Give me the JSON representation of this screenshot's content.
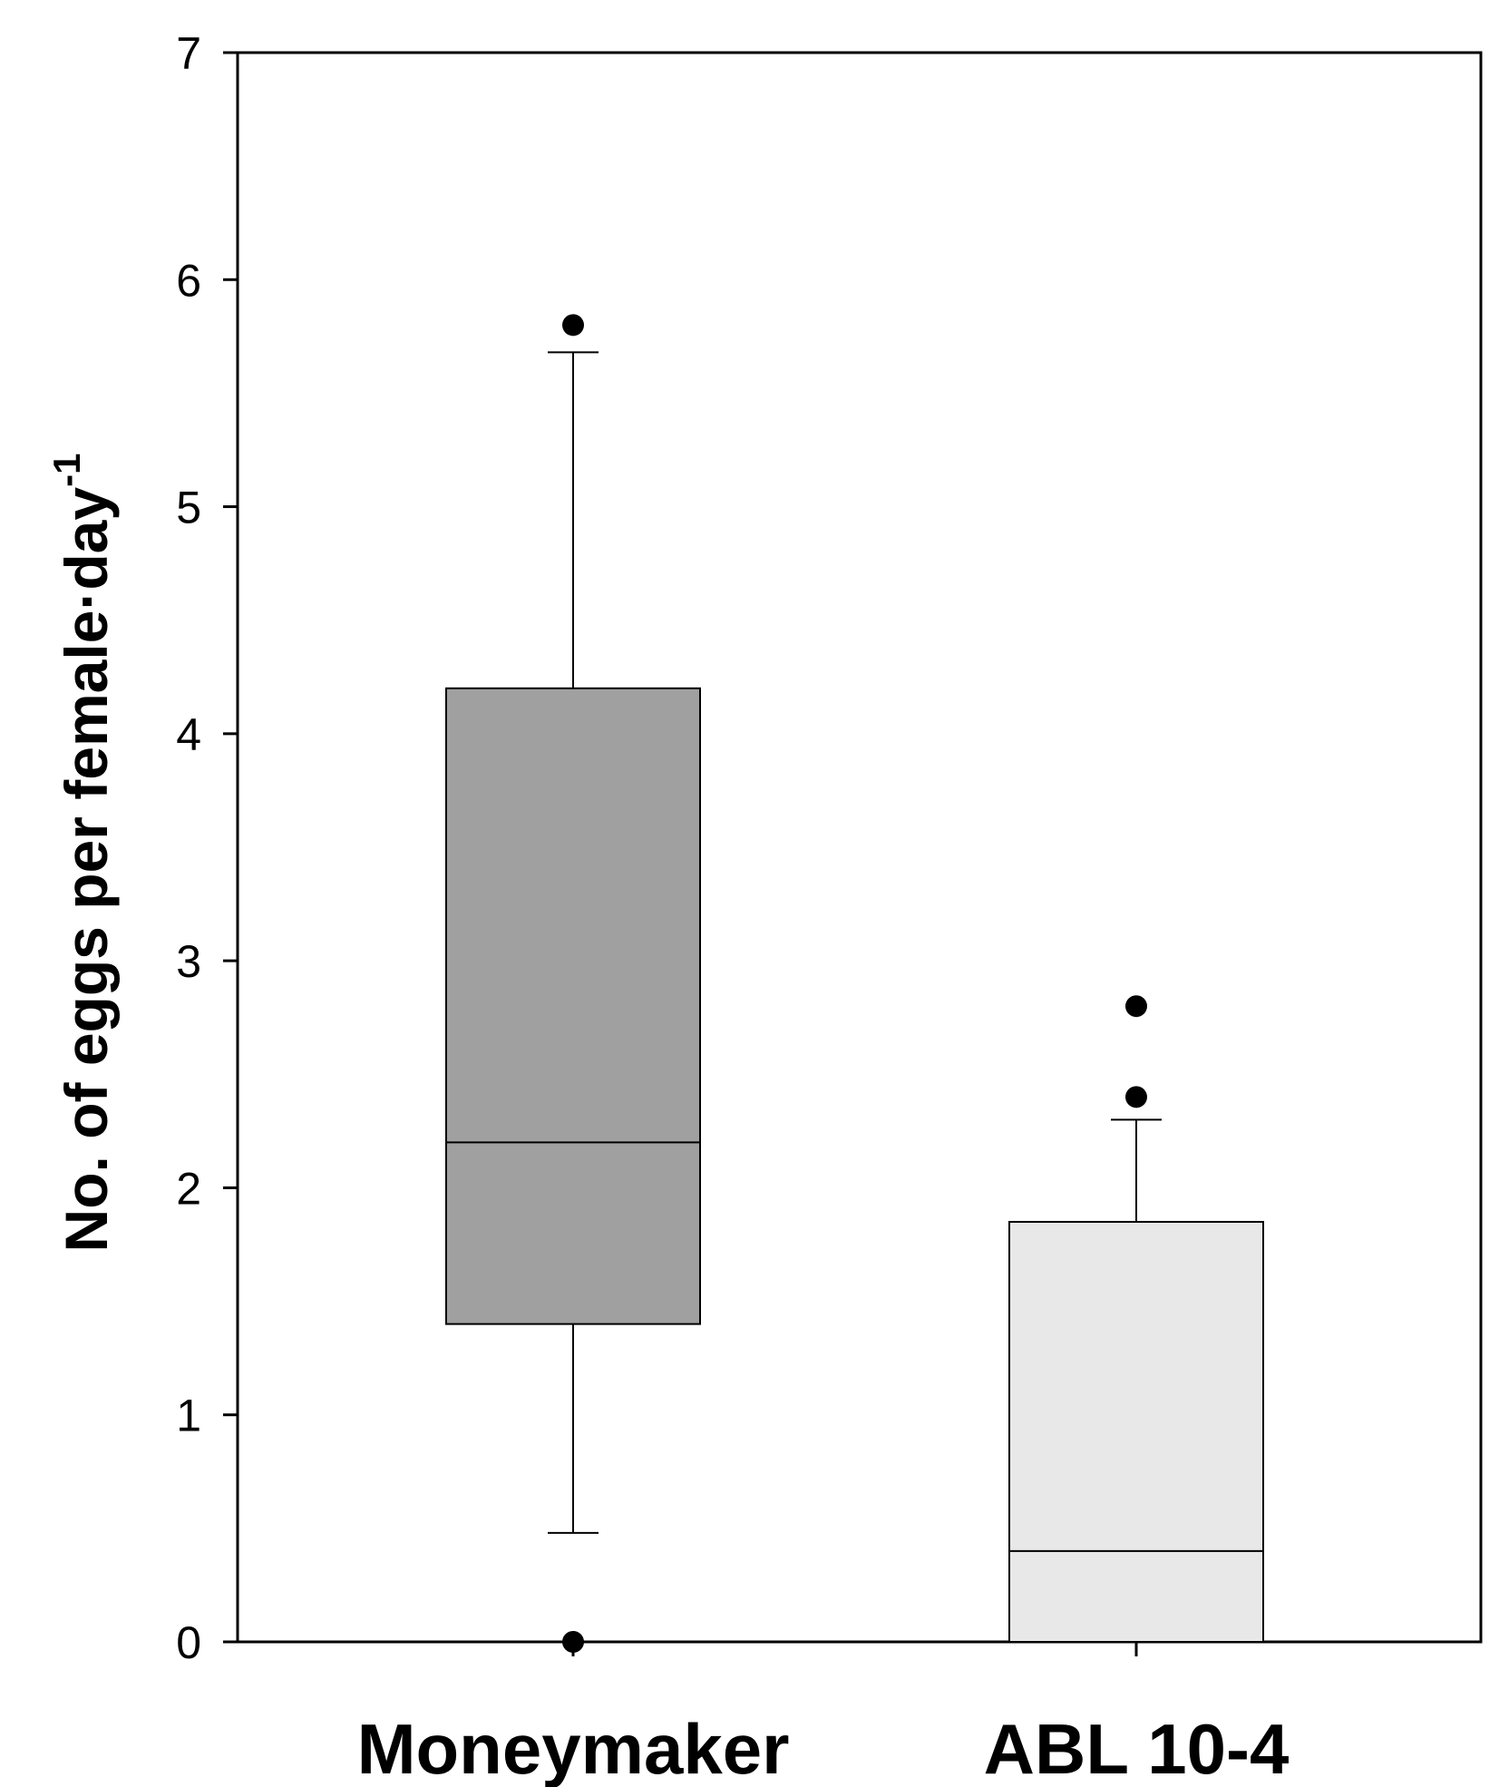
{
  "chart_data": {
    "type": "box",
    "title": "",
    "xlabel": "",
    "ylabel": {
      "text": "No. of eggs per female·day",
      "superscript": "-1"
    },
    "ylim": [
      0,
      7
    ],
    "yticks": [
      "0",
      "1",
      "2",
      "3",
      "4",
      "5",
      "6",
      "7"
    ],
    "grid": false,
    "legend": "none",
    "categories": [
      "Moneymaker",
      "ABL 10-4"
    ],
    "boxes": [
      {
        "category": "Moneymaker",
        "whisker_low": 0.48,
        "q1": 1.4,
        "median": 2.2,
        "q3": 4.2,
        "whisker_high": 5.68,
        "outliers": [
          5.8,
          0.0
        ],
        "fill": "#a0a0a0"
      },
      {
        "category": "ABL 10-4",
        "whisker_low": 0.0,
        "q1": 0.0,
        "median": 0.4,
        "q3": 1.85,
        "whisker_high": 2.3,
        "outliers": [
          2.8,
          2.4
        ],
        "fill": "#e8e8e8"
      }
    ]
  }
}
